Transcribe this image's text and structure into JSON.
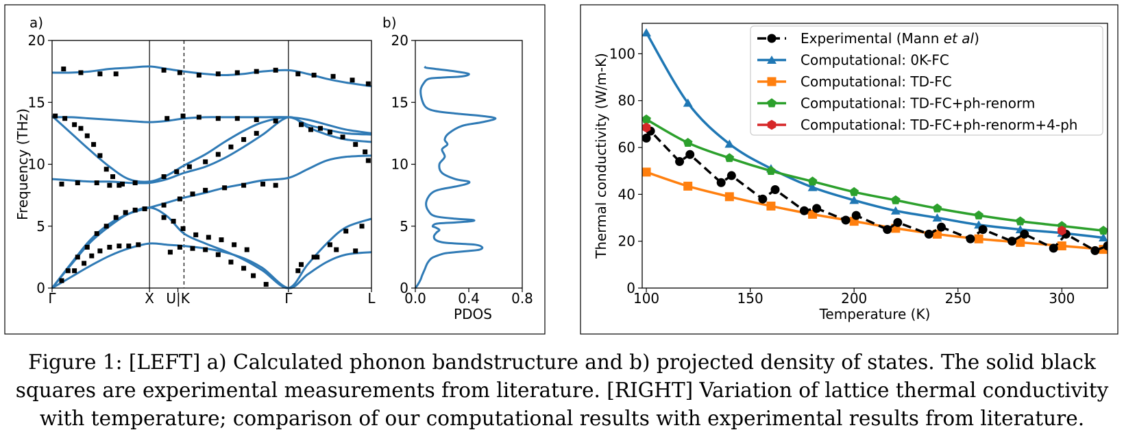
{
  "caption": {
    "line1": "Figure 1: [LEFT] a) Calculated phonon bandstructure and b) projected density of states. The solid black",
    "line2": "squares are experimental measurements from literature. [RIGHT] Variation of lattice thermal conductivity",
    "line3": "with temperature; comparison of our computational results with experimental results from literature."
  },
  "colors": {
    "band": "#2f7ab5",
    "blue": "#1f77b4",
    "orange": "#ff7f0e",
    "green": "#2ca02c",
    "red": "#d62728",
    "black": "#000000"
  },
  "chart_data": [
    {
      "type": "line",
      "panel_label": "a)",
      "ylabel": "Frequency (THz)",
      "xlabel": "",
      "ylim": [
        0,
        20
      ],
      "yticks": [
        0,
        5,
        10,
        15,
        20
      ],
      "yticklabels": [
        "0",
        "5",
        "10",
        "15",
        "20"
      ],
      "xlim": [
        0,
        5.0
      ],
      "xticks": [
        {
          "x": 0,
          "label": "Γ"
        },
        {
          "x": 1.525,
          "label": "X"
        },
        {
          "x": 1.97,
          "label": "U|K"
        },
        {
          "x": 3.7,
          "label": "Γ"
        },
        {
          "x": 5.0,
          "label": "L"
        }
      ],
      "solid_vlines": [
        1.525,
        3.7
      ],
      "dashed_vlines": [
        2.065
      ],
      "series": [
        {
          "x": [
            0,
            0.3,
            0.6,
            0.9,
            1.2,
            1.525,
            1.8,
            2.065,
            2.4,
            2.7,
            3.0,
            3.3,
            3.7,
            4.0,
            4.3,
            4.6,
            5.0
          ],
          "y": [
            0,
            0.9,
            1.8,
            2.6,
            3.2,
            3.6,
            3.5,
            3.4,
            3.2,
            2.9,
            2.4,
            1.6,
            0,
            1.1,
            2.1,
            2.7,
            2.9
          ]
        },
        {
          "x": [
            0,
            0.3,
            0.6,
            0.9,
            1.2,
            1.525,
            1.8,
            2.065,
            2.4,
            2.7,
            3.0,
            3.3,
            3.7,
            4.0,
            4.3,
            4.6,
            5.0
          ],
          "y": [
            0,
            1.9,
            3.7,
            5.0,
            6.0,
            6.5,
            5.8,
            4.4,
            3.6,
            3.0,
            2.3,
            1.4,
            0,
            1.9,
            3.6,
            4.9,
            5.6
          ]
        },
        {
          "x": [
            0,
            0.3,
            0.6,
            0.9,
            1.2,
            1.525,
            1.8,
            2.065,
            2.4,
            2.7,
            3.0,
            3.3,
            3.7,
            4.0,
            4.3,
            4.6,
            5.0
          ],
          "y": [
            0,
            2.0,
            3.9,
            5.2,
            6.0,
            6.5,
            6.9,
            7.3,
            7.7,
            8.1,
            8.4,
            8.7,
            8.9,
            9.6,
            10.3,
            10.6,
            10.7
          ]
        },
        {
          "x": [
            0,
            0.3,
            0.6,
            0.9,
            1.2,
            1.525,
            1.8,
            2.065,
            2.4,
            2.7,
            3.0,
            3.3,
            3.7,
            4.0,
            4.3,
            4.6,
            5.0
          ],
          "y": [
            8.8,
            8.7,
            8.6,
            8.6,
            8.5,
            8.5,
            8.8,
            9.3,
            9.8,
            10.5,
            11.4,
            12.4,
            13.8,
            13.0,
            12.4,
            12.0,
            11.8
          ]
        },
        {
          "x": [
            0,
            0.3,
            0.6,
            0.9,
            1.2,
            1.525,
            1.8,
            2.065,
            2.4,
            2.7,
            3.0,
            3.3,
            3.7,
            4.0,
            4.3,
            4.6,
            5.0
          ],
          "y": [
            13.9,
            12.5,
            11.1,
            9.8,
            8.8,
            8.6,
            9.1,
            9.9,
            10.8,
            11.8,
            12.7,
            13.4,
            13.8,
            13.2,
            12.8,
            12.5,
            12.4
          ]
        },
        {
          "x": [
            0,
            0.3,
            0.6,
            0.9,
            1.2,
            1.525,
            1.8,
            2.065,
            2.4,
            2.7,
            3.0,
            3.3,
            3.7,
            4.0,
            4.3,
            4.6,
            5.0
          ],
          "y": [
            13.8,
            13.8,
            13.7,
            13.6,
            13.5,
            13.4,
            13.5,
            13.7,
            13.8,
            13.8,
            13.8,
            13.8,
            13.8,
            13.6,
            13.2,
            12.8,
            12.5
          ]
        },
        {
          "x": [
            0,
            0.3,
            0.6,
            0.9,
            1.2,
            1.525,
            1.8,
            2.065,
            2.4,
            2.7,
            3.0,
            3.3,
            3.7,
            4.0,
            4.3,
            4.6,
            5.0
          ],
          "y": [
            17.4,
            17.4,
            17.5,
            17.7,
            17.8,
            17.9,
            17.7,
            17.5,
            17.3,
            17.2,
            17.3,
            17.5,
            17.6,
            17.3,
            16.9,
            16.6,
            16.3
          ]
        }
      ],
      "experimental_points": [
        [
          0.15,
          0.6
        ],
        [
          0.35,
          1.4
        ],
        [
          0.5,
          2.0
        ],
        [
          0.62,
          2.6
        ],
        [
          0.75,
          3.0
        ],
        [
          0.9,
          3.3
        ],
        [
          1.05,
          3.4
        ],
        [
          1.2,
          3.4
        ],
        [
          1.35,
          3.5
        ],
        [
          0.25,
          1.4
        ],
        [
          0.4,
          2.5
        ],
        [
          0.55,
          3.3
        ],
        [
          0.7,
          4.4
        ],
        [
          0.85,
          5.0
        ],
        [
          1.0,
          5.7
        ],
        [
          1.15,
          6.1
        ],
        [
          1.3,
          6.3
        ],
        [
          1.45,
          6.4
        ],
        [
          0.15,
          8.4
        ],
        [
          0.4,
          8.5
        ],
        [
          0.7,
          8.5
        ],
        [
          0.9,
          8.3
        ],
        [
          1.1,
          8.4
        ],
        [
          1.3,
          8.5
        ],
        [
          0.05,
          13.9
        ],
        [
          0.2,
          13.7
        ],
        [
          0.35,
          13.2
        ],
        [
          0.45,
          12.9
        ],
        [
          0.55,
          12.3
        ],
        [
          0.65,
          11.6
        ],
        [
          0.75,
          10.7
        ],
        [
          0.85,
          9.6
        ],
        [
          0.95,
          9.0
        ],
        [
          1.05,
          8.3
        ],
        [
          0.18,
          17.7
        ],
        [
          0.45,
          17.4
        ],
        [
          0.75,
          17.3
        ],
        [
          1.0,
          17.3
        ],
        [
          1.85,
          2.9
        ],
        [
          2.0,
          3.3
        ],
        [
          2.2,
          3.2
        ],
        [
          2.4,
          3.1
        ],
        [
          2.6,
          2.7
        ],
        [
          2.8,
          2.1
        ],
        [
          3.0,
          1.6
        ],
        [
          3.15,
          1.0
        ],
        [
          3.35,
          0.3
        ],
        [
          1.75,
          5.7
        ],
        [
          1.9,
          5.4
        ],
        [
          2.05,
          4.8
        ],
        [
          2.25,
          4.3
        ],
        [
          2.45,
          4.1
        ],
        [
          2.65,
          3.9
        ],
        [
          2.85,
          3.5
        ],
        [
          3.05,
          3.1
        ],
        [
          1.75,
          6.7
        ],
        [
          2.0,
          7.2
        ],
        [
          2.2,
          7.6
        ],
        [
          2.4,
          7.9
        ],
        [
          2.7,
          8.1
        ],
        [
          3.0,
          8.3
        ],
        [
          3.3,
          8.4
        ],
        [
          3.5,
          8.3
        ],
        [
          1.75,
          9.0
        ],
        [
          1.95,
          9.4
        ],
        [
          2.15,
          9.8
        ],
        [
          2.4,
          10.2
        ],
        [
          2.6,
          10.8
        ],
        [
          2.8,
          11.4
        ],
        [
          3.0,
          12.0
        ],
        [
          3.2,
          12.5
        ],
        [
          1.8,
          13.7
        ],
        [
          2.05,
          13.9
        ],
        [
          2.3,
          13.8
        ],
        [
          2.6,
          13.7
        ],
        [
          2.9,
          13.7
        ],
        [
          3.2,
          13.6
        ],
        [
          3.5,
          13.5
        ],
        [
          1.75,
          17.6
        ],
        [
          2.0,
          17.4
        ],
        [
          2.3,
          17.2
        ],
        [
          2.6,
          17.3
        ],
        [
          2.9,
          17.4
        ],
        [
          3.2,
          17.5
        ],
        [
          3.5,
          17.6
        ],
        [
          3.85,
          1.4
        ],
        [
          4.1,
          2.5
        ],
        [
          4.35,
          3.5
        ],
        [
          4.6,
          4.6
        ],
        [
          4.85,
          5.0
        ],
        [
          3.9,
          1.9
        ],
        [
          4.15,
          2.5
        ],
        [
          4.45,
          3.1
        ],
        [
          4.75,
          3.0
        ],
        [
          3.9,
          13.2
        ],
        [
          4.05,
          12.8
        ],
        [
          4.2,
          12.9
        ],
        [
          4.35,
          12.6
        ],
        [
          4.55,
          12.2
        ],
        [
          4.75,
          11.6
        ],
        [
          4.9,
          11.0
        ],
        [
          4.95,
          10.3
        ],
        [
          3.85,
          17.3
        ],
        [
          4.1,
          17.2
        ],
        [
          4.4,
          17.1
        ],
        [
          4.7,
          16.8
        ],
        [
          4.95,
          16.5
        ]
      ]
    },
    {
      "type": "line",
      "panel_label": "b)",
      "xlabel": "PDOS",
      "ylabel": "",
      "xlim": [
        0.0,
        0.8
      ],
      "ylim": [
        0,
        20
      ],
      "xticks": [
        0.0,
        0.4,
        0.8
      ],
      "xticklabels": [
        "0.0",
        "0.4",
        "0.8"
      ],
      "yticks": [
        0,
        5,
        10,
        15,
        20
      ],
      "yticklabels": [
        "0",
        "5",
        "10",
        "15",
        "20"
      ],
      "series": [
        {
          "x": [
            0.0,
            0.02,
            0.04,
            0.05,
            0.07,
            0.09,
            0.12,
            0.16,
            0.22,
            0.3,
            0.4,
            0.48,
            0.5,
            0.45,
            0.3,
            0.2,
            0.15,
            0.14,
            0.16,
            0.18,
            0.15,
            0.13,
            0.16,
            0.3,
            0.42,
            0.43,
            0.3,
            0.15,
            0.1,
            0.08,
            0.1,
            0.14,
            0.2,
            0.3,
            0.38,
            0.4,
            0.3,
            0.2,
            0.18,
            0.22,
            0.2,
            0.24,
            0.22,
            0.25,
            0.35,
            0.5,
            0.6,
            0.5,
            0.3,
            0.15,
            0.08,
            0.05,
            0.04,
            0.06,
            0.1,
            0.2,
            0.35,
            0.4,
            0.3,
            0.15,
            0.08,
            0.07
          ],
          "y": [
            0.0,
            0.3,
            0.7,
            1.0,
            1.5,
            2.0,
            2.4,
            2.6,
            2.8,
            2.9,
            3.0,
            3.1,
            3.3,
            3.5,
            3.6,
            3.7,
            3.9,
            4.2,
            4.5,
            4.7,
            4.9,
            5.0,
            5.2,
            5.3,
            5.4,
            5.5,
            5.6,
            5.8,
            6.2,
            6.8,
            7.4,
            7.8,
            8.0,
            8.2,
            8.4,
            8.6,
            8.8,
            9.3,
            10.0,
            10.6,
            11.2,
            11.6,
            12.0,
            12.5,
            13.1,
            13.4,
            13.7,
            13.9,
            14.1,
            14.3,
            14.6,
            15.2,
            16.0,
            16.5,
            16.9,
            17.0,
            17.1,
            17.3,
            17.5,
            17.7,
            17.8,
            17.9
          ]
        }
      ]
    },
    {
      "type": "line",
      "xlabel": "Temperature (K)",
      "ylabel": "Thermal conductivity (W/m-K)",
      "xlim": [
        98,
        322
      ],
      "ylim": [
        0,
        113
      ],
      "xticks": [
        100,
        150,
        200,
        250,
        300
      ],
      "xticklabels": [
        "100",
        "150",
        "200",
        "250",
        "300"
      ],
      "yticks": [
        0,
        20,
        40,
        60,
        80,
        100
      ],
      "yticklabels": [
        "0",
        "20",
        "40",
        "60",
        "80",
        "100"
      ],
      "legend_position": "top-right",
      "series": [
        {
          "name": "Experimental (Mann et al)",
          "name_parts": [
            {
              "t": "Experimental (Mann ",
              "i": false
            },
            {
              "t": "et al",
              "i": true
            },
            {
              "t": ")",
              "i": false
            }
          ],
          "style": "dashed",
          "color": "#000000",
          "marker": "circle",
          "x": [
            100,
            102,
            116,
            121,
            136,
            141,
            156,
            162,
            176,
            182,
            196,
            201,
            216,
            221,
            236,
            242,
            256,
            262,
            276,
            282,
            296,
            302,
            316,
            322
          ],
          "y": [
            64,
            67,
            54,
            57,
            45,
            48,
            38,
            42,
            33,
            34,
            29,
            31,
            25,
            28,
            23,
            26,
            21,
            25,
            20,
            23,
            17,
            23,
            16,
            18
          ]
        },
        {
          "name": "Computational: 0K-FC",
          "color": "#1f77b4",
          "marker": "triangle",
          "x": [
            100,
            120,
            140,
            160,
            180,
            200,
            220,
            240,
            260,
            280,
            300,
            320
          ],
          "y": [
            109,
            79,
            61.5,
            51,
            43,
            37.5,
            33,
            30,
            27,
            25,
            23.5,
            21.5
          ]
        },
        {
          "name": "Computational: TD-FC",
          "color": "#ff7f0e",
          "marker": "square",
          "x": [
            100,
            120,
            140,
            160,
            180,
            200,
            220,
            240,
            260,
            280,
            300,
            320
          ],
          "y": [
            49.5,
            43.5,
            39,
            35,
            31.5,
            28.5,
            25.5,
            23,
            21,
            19.5,
            18,
            16.5
          ]
        },
        {
          "name": "Computational: TD-FC+ph-renorm",
          "color": "#2ca02c",
          "marker": "pentagon",
          "x": [
            100,
            120,
            140,
            160,
            180,
            200,
            220,
            240,
            260,
            280,
            300,
            320
          ],
          "y": [
            72,
            62,
            55.5,
            50,
            45.5,
            41,
            37.5,
            34,
            31,
            28.5,
            26.5,
            24.5
          ]
        },
        {
          "name": "Computational: TD-FC+ph-renorm+4-ph",
          "color": "#d62728",
          "marker": "hexagon",
          "x": [
            100,
            300
          ],
          "y": [
            68.5,
            24.5
          ]
        }
      ]
    }
  ]
}
